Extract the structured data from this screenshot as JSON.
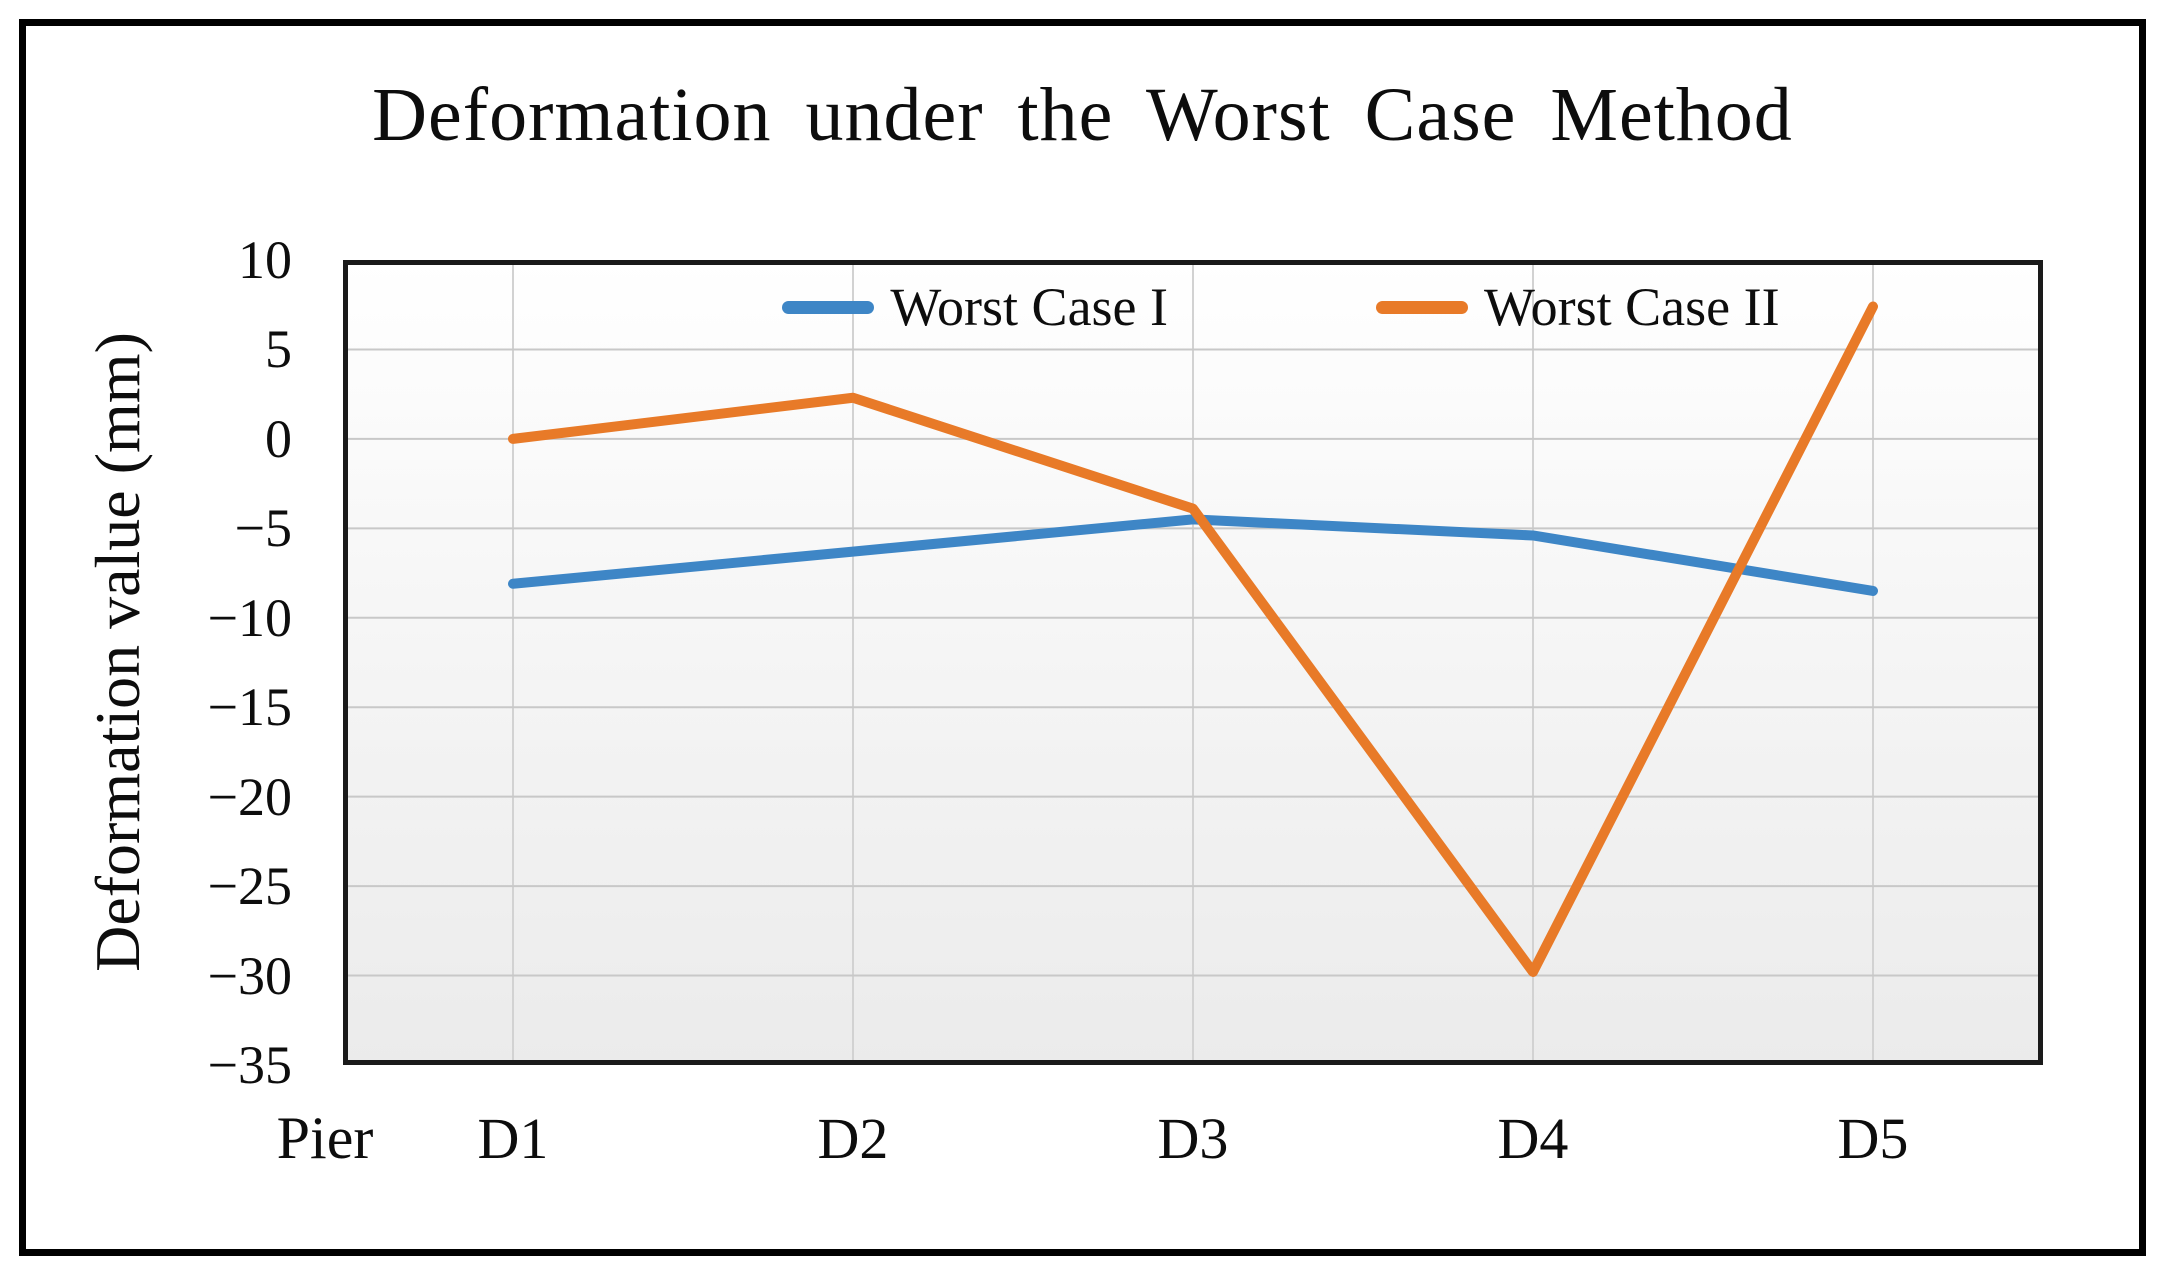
{
  "chart_data": {
    "type": "line",
    "title": "Deformation under the Worst Case Method",
    "ylabel": "Deformation value (mm)",
    "xlabel": "Pier",
    "categories": [
      "D1",
      "D2",
      "D3",
      "D4",
      "D5"
    ],
    "ylim": [
      -35,
      10
    ],
    "y_ticks": [
      10,
      5,
      0,
      -5,
      -10,
      -15,
      -20,
      -25,
      -30,
      -35
    ],
    "grid": true,
    "legend_position": "top-center-inside",
    "series": [
      {
        "name": "Worst Case I",
        "color": "#3E86C6",
        "values": [
          -8.1,
          -6.3,
          -4.5,
          -5.4,
          -8.5
        ]
      },
      {
        "name": "Worst Case II",
        "color": "#E87A28",
        "values": [
          0,
          2.3,
          -3.9,
          -29.8,
          7.4
        ]
      }
    ],
    "colors": {
      "h_gridline": "#C8C8C8",
      "v_gridline": "#D2D2D2",
      "plot_border": "#1A1A1A",
      "outer_frame": "#000000",
      "text": "#0D0D0D"
    }
  }
}
